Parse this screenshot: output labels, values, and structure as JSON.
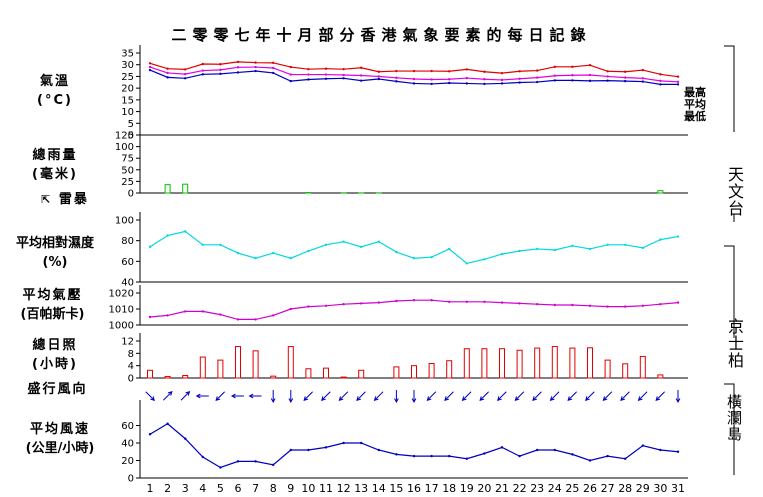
{
  "title": "二零零七年十月部分香港氣象要素的每日記錄",
  "panels": {
    "temperature": {
      "label_line1": "氣溫",
      "label_line2": "(°C)",
      "legend": [
        "最高",
        "平均",
        "最低"
      ],
      "colors": [
        "#e00000",
        "#e000e0",
        "#0000c0"
      ]
    },
    "rainfall": {
      "label_line1": "總雨量",
      "label_line2": "(毫米)",
      "color": "#00c000"
    },
    "thunder": {
      "label": "雷暴",
      "color": "#00c000"
    },
    "humidity": {
      "label_line1": "平均相對濕度",
      "label_line2": "(%)",
      "color": "#00d8e0"
    },
    "pressure": {
      "label_line1": "平均氣壓",
      "label_line2": "(百帕斯卡)",
      "color": "#d000d0"
    },
    "sunshine": {
      "label_line1": "總日照",
      "label_line2": "(小時)",
      "color": "#e00000"
    },
    "wind_direction": {
      "label": "盛行風向",
      "color": "#0000c0"
    },
    "wind_speed": {
      "label_line1": "平均風速",
      "label_line2": "(公里/小時)",
      "color": "#0000c0"
    }
  },
  "stations": [
    "天文台",
    "京士柏",
    "橫瀾島"
  ],
  "chart_data": [
    {
      "type": "line",
      "name": "temperature",
      "x": [
        1,
        2,
        3,
        4,
        5,
        6,
        7,
        8,
        9,
        10,
        11,
        12,
        13,
        14,
        15,
        16,
        17,
        18,
        19,
        20,
        21,
        22,
        23,
        24,
        25,
        26,
        27,
        28,
        29,
        30,
        31
      ],
      "ylim": [
        0,
        35
      ],
      "yticks": [
        0,
        5,
        10,
        15,
        20,
        25,
        30,
        35
      ],
      "series": [
        {
          "name": "最高",
          "values": [
            30.6,
            28.3,
            28.0,
            30.3,
            30.2,
            31.2,
            30.9,
            30.8,
            29.0,
            28.1,
            28.3,
            28.1,
            28.7,
            27.0,
            27.3,
            27.3,
            27.3,
            27.2,
            28.0,
            27.0,
            26.4,
            27.2,
            27.5,
            29.1,
            29.1,
            29.8,
            27.2,
            27.0,
            27.7,
            25.9,
            24.9
          ]
        },
        {
          "name": "平均",
          "values": [
            29.0,
            26.5,
            26.0,
            27.5,
            27.8,
            28.9,
            29.0,
            28.6,
            25.8,
            25.8,
            25.8,
            25.6,
            25.4,
            25.0,
            24.4,
            23.9,
            23.7,
            23.8,
            24.3,
            23.8,
            23.5,
            24.0,
            24.5,
            25.3,
            25.5,
            25.6,
            25.0,
            24.5,
            24.2,
            23.1,
            22.7
          ]
        },
        {
          "name": "最低",
          "values": [
            27.7,
            24.6,
            24.2,
            25.9,
            26.1,
            26.7,
            27.3,
            26.5,
            23.0,
            23.7,
            24.0,
            24.2,
            23.2,
            23.9,
            22.9,
            22.0,
            21.8,
            22.2,
            22.0,
            21.8,
            22.0,
            22.4,
            22.6,
            23.3,
            23.3,
            23.1,
            23.2,
            23.0,
            22.8,
            21.6,
            21.6
          ]
        }
      ]
    },
    {
      "type": "bar",
      "name": "rainfall",
      "x": [
        1,
        2,
        3,
        4,
        5,
        6,
        7,
        8,
        9,
        10,
        11,
        12,
        13,
        14,
        15,
        16,
        17,
        18,
        19,
        20,
        21,
        22,
        23,
        24,
        25,
        26,
        27,
        28,
        29,
        30,
        31
      ],
      "ylim": [
        0,
        125
      ],
      "yticks": [
        0,
        25,
        50,
        75,
        100,
        125
      ],
      "values": [
        0,
        18,
        19,
        0,
        0,
        0,
        0,
        0,
        0,
        1,
        0,
        0.4,
        0.3,
        0.3,
        0,
        0,
        0,
        0,
        0,
        0,
        0,
        0,
        0,
        0,
        0,
        0,
        0,
        0,
        0,
        5,
        0
      ]
    },
    {
      "type": "scatter",
      "name": "thunder",
      "x": [
        1,
        2,
        3,
        4,
        5,
        6,
        7,
        8,
        9,
        10,
        11,
        12,
        13,
        14,
        15,
        16,
        17,
        18,
        19,
        20,
        21,
        22,
        23,
        24,
        25,
        26,
        27,
        28,
        29,
        30,
        31
      ],
      "values": [
        0,
        0,
        0,
        0,
        0,
        0,
        0,
        0,
        0,
        0,
        0,
        0,
        0,
        0,
        0,
        0,
        0,
        0,
        0,
        0,
        0,
        0,
        0,
        0,
        0,
        0,
        0,
        0,
        0,
        0,
        0
      ]
    },
    {
      "type": "line",
      "name": "humidity",
      "x": [
        1,
        2,
        3,
        4,
        5,
        6,
        7,
        8,
        9,
        10,
        11,
        12,
        13,
        14,
        15,
        16,
        17,
        18,
        19,
        20,
        21,
        22,
        23,
        24,
        25,
        26,
        27,
        28,
        29,
        30,
        31
      ],
      "ylim": [
        40,
        100
      ],
      "yticks": [
        40,
        60,
        80,
        100
      ],
      "values": [
        74,
        85,
        89,
        76,
        76,
        68,
        63,
        68,
        63,
        70,
        76,
        79,
        74,
        79,
        69,
        63,
        64,
        72,
        58,
        62,
        67,
        70,
        72,
        71,
        75,
        72,
        76,
        76,
        73,
        81,
        84
      ]
    },
    {
      "type": "line",
      "name": "pressure",
      "x": [
        1,
        2,
        3,
        4,
        5,
        6,
        7,
        8,
        9,
        10,
        11,
        12,
        13,
        14,
        15,
        16,
        17,
        18,
        19,
        20,
        21,
        22,
        23,
        24,
        25,
        26,
        27,
        28,
        29,
        30,
        31
      ],
      "ylim": [
        1000,
        1020
      ],
      "yticks": [
        1000,
        1010,
        1020
      ],
      "values": [
        1005,
        1006,
        1008.5,
        1008.5,
        1006.5,
        1003.5,
        1003.5,
        1006,
        1010,
        1011.5,
        1012,
        1013,
        1013.5,
        1014,
        1015,
        1015.5,
        1015.5,
        1014.5,
        1014.5,
        1014.5,
        1014,
        1013.5,
        1013,
        1012.5,
        1012.5,
        1012,
        1011.5,
        1011.5,
        1012,
        1013,
        1014
      ]
    },
    {
      "type": "bar",
      "name": "sunshine",
      "x": [
        1,
        2,
        3,
        4,
        5,
        6,
        7,
        8,
        9,
        10,
        11,
        12,
        13,
        14,
        15,
        16,
        17,
        18,
        19,
        20,
        21,
        22,
        23,
        24,
        25,
        26,
        27,
        28,
        29,
        30,
        31
      ],
      "ylim": [
        0,
        12
      ],
      "yticks": [
        0,
        4,
        8,
        12
      ],
      "values": [
        2.5,
        0.5,
        0.8,
        6.8,
        5.8,
        10.2,
        8.8,
        0.6,
        10.2,
        3.0,
        3.2,
        0.3,
        2.5,
        0,
        3.6,
        4.0,
        4.7,
        5.6,
        9.5,
        9.5,
        9.5,
        9.0,
        9.7,
        10.2,
        9.7,
        9.8,
        5.8,
        4.6,
        7.0,
        1.0,
        0
      ]
    },
    {
      "type": "scatter",
      "name": "wind_direction",
      "x": [
        1,
        2,
        3,
        4,
        5,
        6,
        7,
        8,
        9,
        10,
        11,
        12,
        13,
        14,
        15,
        16,
        17,
        18,
        19,
        20,
        21,
        22,
        23,
        24,
        25,
        26,
        27,
        28,
        29,
        30,
        31
      ],
      "values": [
        "NW",
        "SW",
        "SW",
        "E",
        "NE",
        "E",
        "E",
        "N",
        "N",
        "NE",
        "NE",
        "NE",
        "NE",
        "NE",
        "N",
        "N",
        "NE",
        "NE",
        "NE",
        "NE",
        "NE",
        "NE",
        "NE",
        "NE",
        "NE",
        "NE",
        "NE",
        "NE",
        "NE",
        "NE",
        "N"
      ]
    },
    {
      "type": "line",
      "name": "wind_speed",
      "x": [
        1,
        2,
        3,
        4,
        5,
        6,
        7,
        8,
        9,
        10,
        11,
        12,
        13,
        14,
        15,
        16,
        17,
        18,
        19,
        20,
        21,
        22,
        23,
        24,
        25,
        26,
        27,
        28,
        29,
        30,
        31
      ],
      "ylim": [
        0,
        80
      ],
      "yticks": [
        0,
        20,
        40,
        60
      ],
      "values": [
        50,
        62,
        45,
        24,
        12,
        19,
        19,
        15,
        32,
        32,
        35,
        40,
        40,
        32,
        27,
        25,
        25,
        25,
        22,
        28,
        35,
        25,
        32,
        32,
        27,
        20,
        25,
        22,
        37,
        32,
        30
      ]
    }
  ]
}
